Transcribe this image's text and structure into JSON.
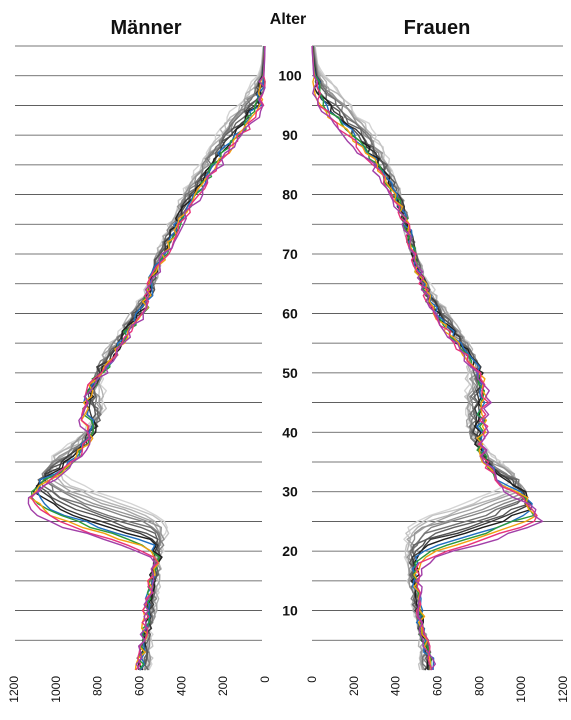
{
  "chart_data": {
    "type": "line",
    "layout": "population-pyramid",
    "left_title": "Männer",
    "right_title": "Frauen",
    "center_label": "Alter",
    "y_range": [
      0,
      105
    ],
    "y_ticks": [
      10,
      20,
      30,
      40,
      50,
      60,
      70,
      80,
      90,
      100
    ],
    "x_range": [
      0,
      1200
    ],
    "x_ticks_left": [
      "1200",
      "1000",
      "800",
      "600",
      "400",
      "200",
      "0"
    ],
    "x_ticks_right": [
      "0",
      "200",
      "400",
      "600",
      "800",
      "1000",
      "1200"
    ],
    "grid": "horizontal every 5 years",
    "colors": {
      "grays": [
        "#d4d4d4",
        "#c4c4c4",
        "#b4b4b4",
        "#a4a4a4",
        "#949494",
        "#848484",
        "#747474",
        "#646464",
        "#545454",
        "#3a3a3a",
        "#1e1e1e"
      ],
      "accents": [
        "#1f6fc0",
        "#2a9a3a",
        "#f2a10f",
        "#e8337c",
        "#a23fa8"
      ]
    },
    "shape": {
      "ages": [
        0,
        5,
        10,
        15,
        17,
        19,
        20,
        22,
        25,
        28,
        30,
        32,
        35,
        38,
        40,
        42,
        45,
        48,
        50,
        55,
        60,
        65,
        70,
        75,
        80,
        85,
        90,
        93,
        95,
        100,
        105
      ],
      "men": [
        590,
        560,
        550,
        530,
        510,
        530,
        580,
        760,
        1000,
        1100,
        1060,
        970,
        880,
        820,
        830,
        850,
        830,
        800,
        740,
        660,
        560,
        530,
        460,
        390,
        300,
        210,
        100,
        40,
        18,
        5,
        0
      ],
      "women": [
        560,
        520,
        500,
        490,
        500,
        560,
        660,
        850,
        1050,
        1000,
        900,
        850,
        800,
        790,
        800,
        800,
        810,
        800,
        760,
        660,
        560,
        510,
        470,
        430,
        370,
        280,
        150,
        70,
        30,
        8,
        0
      ]
    }
  }
}
